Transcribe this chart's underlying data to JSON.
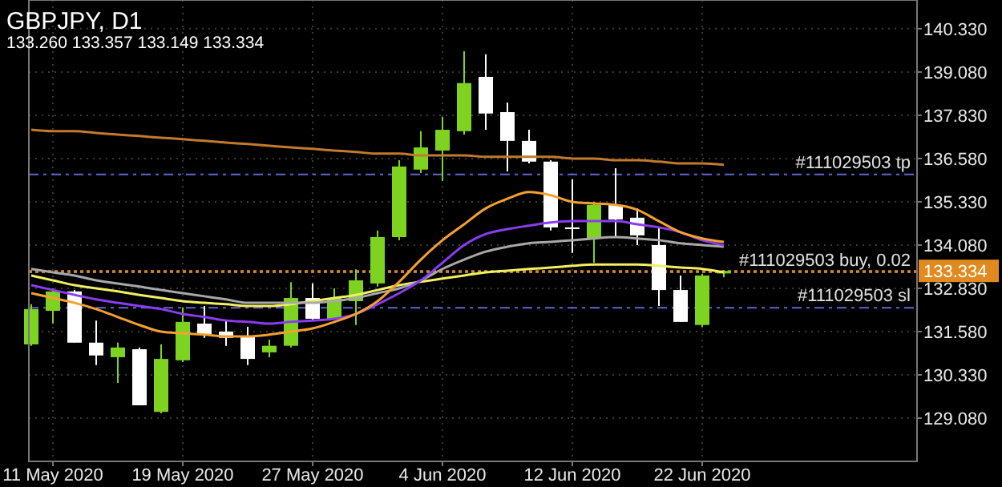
{
  "chart_data": {
    "type": "candlestick",
    "title": "GBPJPY, D1",
    "subtitle": "133.260 133.357 133.149 133.334",
    "categories": [
      null,
      "11 May 2020",
      null,
      null,
      null,
      null,
      null,
      "19 May 2020",
      null,
      null,
      null,
      null,
      null,
      "27 May 2020",
      null,
      null,
      null,
      null,
      null,
      "4 Jun 2020",
      null,
      null,
      null,
      null,
      null,
      "12 Jun 2020",
      null,
      null,
      null,
      null,
      null,
      "22 Jun 2020",
      null
    ],
    "ohlc": [
      [
        131.21,
        132.37,
        131.17,
        132.23
      ],
      [
        132.18,
        132.83,
        131.81,
        132.74
      ],
      [
        132.74,
        132.78,
        131.26,
        131.26
      ],
      [
        131.26,
        131.9,
        130.61,
        130.89
      ],
      [
        130.84,
        131.26,
        130.1,
        131.12
      ],
      [
        131.07,
        131.12,
        129.45,
        129.45
      ],
      [
        129.26,
        131.21,
        129.22,
        130.79
      ],
      [
        130.75,
        132.28,
        130.7,
        131.86
      ],
      [
        131.81,
        132.32,
        131.4,
        131.49
      ],
      [
        131.58,
        131.9,
        131.17,
        131.4
      ],
      [
        131.44,
        131.72,
        130.61,
        130.79
      ],
      [
        130.98,
        131.35,
        130.84,
        131.17
      ],
      [
        131.17,
        133.01,
        131.12,
        132.55
      ],
      [
        132.55,
        132.97,
        131.9,
        131.95
      ],
      [
        131.95,
        132.83,
        131.95,
        132.55
      ],
      [
        132.46,
        133.38,
        131.77,
        133.06
      ],
      [
        132.97,
        134.5,
        132.88,
        134.31
      ],
      [
        134.31,
        136.53,
        134.22,
        136.35
      ],
      [
        136.26,
        137.37,
        136.16,
        136.9
      ],
      [
        136.81,
        137.78,
        135.93,
        137.41
      ],
      [
        137.37,
        139.68,
        137.27,
        138.76
      ],
      [
        138.94,
        139.59,
        137.41,
        137.88
      ],
      [
        137.92,
        138.2,
        136.21,
        137.09
      ],
      [
        137.09,
        137.41,
        136.44,
        136.49
      ],
      [
        136.49,
        136.53,
        134.5,
        134.59
      ],
      [
        134.59,
        135.98,
        133.85,
        134.54
      ],
      [
        134.27,
        135.33,
        133.57,
        135.24
      ],
      [
        135.24,
        136.3,
        134.31,
        134.82
      ],
      [
        134.87,
        135.14,
        134.08,
        134.36
      ],
      [
        134.08,
        134.59,
        132.32,
        132.78
      ],
      [
        132.78,
        133.2,
        131.86,
        131.86
      ],
      [
        131.77,
        133.25,
        131.72,
        133.2
      ],
      [
        133.26,
        133.357,
        133.149,
        133.334
      ]
    ],
    "colors": [
      "#7ed321",
      "#7ed321",
      "#ffffff",
      "#ffffff",
      "#7ed321",
      "#ffffff",
      "#7ed321",
      "#7ed321",
      "#ffffff",
      "#ffffff",
      "#ffffff",
      "#7ed321",
      "#7ed321",
      "#ffffff",
      "#7ed321",
      "#7ed321",
      "#7ed321",
      "#7ed321",
      "#7ed321",
      "#7ed321",
      "#7ed321",
      "#ffffff",
      "#ffffff",
      "#ffffff",
      "#ffffff",
      "#ffffff",
      "#7ed321",
      "#ffffff",
      "#ffffff",
      "#ffffff",
      "#ffffff",
      "#7ed321",
      "#7ed321"
    ],
    "series": [
      {
        "type": "line",
        "color": "#c27a2c",
        "values": [
          137.41,
          137.37,
          137.37,
          137.32,
          137.27,
          137.23,
          137.18,
          137.14,
          137.09,
          137.04,
          137.0,
          136.95,
          136.9,
          136.86,
          136.81,
          136.77,
          136.72,
          136.72,
          136.67,
          136.67,
          136.67,
          136.63,
          136.63,
          136.63,
          136.63,
          136.58,
          136.58,
          136.53,
          136.53,
          136.49,
          136.44,
          136.44,
          136.4
        ]
      },
      {
        "type": "line",
        "color": "#f0f060",
        "values": [
          133.2,
          133.06,
          132.92,
          132.83,
          132.74,
          132.64,
          132.55,
          132.46,
          132.41,
          132.37,
          132.32,
          132.32,
          132.37,
          132.46,
          132.55,
          132.64,
          132.78,
          132.92,
          133.02,
          133.11,
          133.2,
          133.29,
          133.34,
          133.39,
          133.43,
          133.48,
          133.52,
          133.52,
          133.52,
          133.48,
          133.43,
          133.39,
          133.29
        ]
      },
      {
        "type": "line",
        "color": "#a8a8a8",
        "values": [
          133.39,
          133.29,
          133.2,
          133.06,
          132.97,
          132.88,
          132.78,
          132.69,
          132.6,
          132.51,
          132.41,
          132.41,
          132.41,
          132.41,
          132.46,
          132.55,
          132.69,
          132.83,
          133.06,
          133.39,
          133.66,
          133.89,
          134.03,
          134.13,
          134.17,
          134.22,
          134.27,
          134.31,
          134.27,
          134.22,
          134.13,
          134.08,
          134.03
        ]
      },
      {
        "type": "line",
        "color": "#8a3cf0",
        "values": [
          132.92,
          132.78,
          132.64,
          132.51,
          132.41,
          132.32,
          132.23,
          132.09,
          132.0,
          131.9,
          131.86,
          131.81,
          131.86,
          131.9,
          131.95,
          132.09,
          132.37,
          132.69,
          133.06,
          133.57,
          134.08,
          134.4,
          134.54,
          134.64,
          134.73,
          134.77,
          134.77,
          134.77,
          134.68,
          134.59,
          134.45,
          134.22,
          134.08
        ]
      },
      {
        "type": "line",
        "color": "#f5a030",
        "values": [
          132.69,
          132.55,
          132.41,
          132.23,
          132.0,
          131.77,
          131.58,
          131.53,
          131.49,
          131.44,
          131.44,
          131.49,
          131.58,
          131.67,
          131.86,
          132.09,
          132.46,
          133.02,
          133.66,
          134.22,
          134.68,
          135.14,
          135.42,
          135.61,
          135.52,
          135.33,
          135.28,
          135.24,
          135.1,
          134.77,
          134.45,
          134.27,
          134.17
        ]
      }
    ],
    "ylim": [
      127.83,
      141.16
    ],
    "yticks": [
      {
        "value": 129.08,
        "label": "129.080"
      },
      {
        "value": 130.33,
        "label": "130.330"
      },
      {
        "value": 131.58,
        "label": "131.580"
      },
      {
        "value": 132.83,
        "label": "132.830"
      },
      {
        "value": 134.08,
        "label": "134.080"
      },
      {
        "value": 135.33,
        "label": "135.330"
      },
      {
        "value": 136.58,
        "label": "136.580"
      },
      {
        "value": 137.83,
        "label": "137.830"
      },
      {
        "value": 139.08,
        "label": "139.080"
      },
      {
        "value": 140.33,
        "label": "140.330"
      }
    ],
    "grid": true,
    "ref_lines": [
      {
        "axis": "y",
        "value": 136.12,
        "label": "#111029503 tp",
        "color": "#6464d2",
        "line_style": "dashed"
      },
      {
        "axis": "y",
        "value": 132.27,
        "label": "#111029503 sl",
        "color": "#6464d2",
        "line_style": "dashed"
      },
      {
        "axis": "y",
        "value": 133.29,
        "label": "#111029503 buy, 0.02",
        "color": "#b07a40",
        "line_style": "dotted"
      },
      {
        "axis": "y",
        "value": 133.334,
        "label": "133.334",
        "color": "#e08a20",
        "line_style": "dotted"
      }
    ]
  }
}
